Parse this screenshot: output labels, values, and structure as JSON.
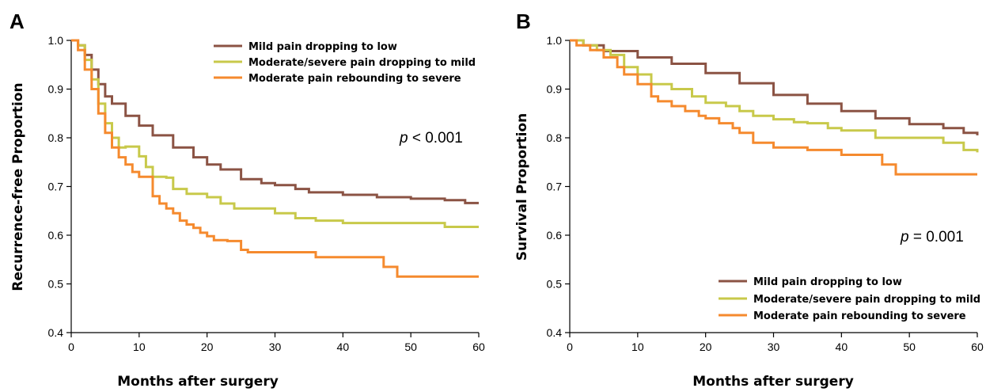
{
  "chart_data": [
    {
      "type": "line",
      "panel_label": "A",
      "xlabel": "Months after surgery",
      "ylabel": "Recurrence-free Proportion",
      "xlim": [
        0,
        60
      ],
      "ylim": [
        0.4,
        1.0
      ],
      "x_ticks": [
        0,
        10,
        20,
        30,
        40,
        50,
        60
      ],
      "y_ticks": [
        0.4,
        0.5,
        0.6,
        0.7,
        0.8,
        0.9,
        1.0
      ],
      "y_tick_labels": [
        "0.4",
        "0.5",
        "0.6",
        "0.7",
        "0.8",
        "0.9",
        "1.0"
      ],
      "legend_position": "top-right",
      "annotation": {
        "italic": "p",
        "rest": " < 0.001"
      },
      "series": [
        {
          "name": "Mild pain dropping to low",
          "color": "#8B5344",
          "x": [
            0,
            1,
            2,
            3,
            4,
            5,
            6,
            8,
            10,
            12,
            15,
            18,
            20,
            22,
            25,
            28,
            30,
            33,
            35,
            40,
            45,
            50,
            55,
            58,
            60
          ],
          "y": [
            1.0,
            0.99,
            0.97,
            0.94,
            0.91,
            0.885,
            0.87,
            0.845,
            0.825,
            0.805,
            0.78,
            0.76,
            0.745,
            0.735,
            0.715,
            0.707,
            0.703,
            0.695,
            0.688,
            0.683,
            0.678,
            0.675,
            0.672,
            0.666,
            0.666
          ]
        },
        {
          "name": "Moderate/severe pain dropping to mild",
          "color": "#C8C94A",
          "x": [
            0,
            1,
            2,
            3,
            4,
            5,
            6,
            7,
            8,
            10,
            11,
            12,
            14,
            15,
            17,
            20,
            22,
            24,
            28,
            30,
            33,
            36,
            40,
            45,
            50,
            55,
            60
          ],
          "y": [
            1.0,
            0.99,
            0.96,
            0.92,
            0.87,
            0.83,
            0.8,
            0.78,
            0.782,
            0.762,
            0.74,
            0.72,
            0.718,
            0.695,
            0.685,
            0.678,
            0.665,
            0.655,
            0.655,
            0.645,
            0.635,
            0.63,
            0.625,
            0.625,
            0.625,
            0.617,
            0.617
          ]
        },
        {
          "name": "Moderate pain rebounding to severe",
          "color": "#F58A2E",
          "x": [
            0,
            1,
            2,
            3,
            4,
            5,
            6,
            7,
            8,
            9,
            10,
            12,
            13,
            14,
            15,
            16,
            17,
            18,
            19,
            20,
            21,
            23,
            25,
            26,
            28,
            33,
            36,
            40,
            45,
            46,
            48,
            50,
            60
          ],
          "y": [
            1.0,
            0.98,
            0.94,
            0.9,
            0.85,
            0.81,
            0.78,
            0.76,
            0.745,
            0.73,
            0.72,
            0.68,
            0.665,
            0.655,
            0.645,
            0.63,
            0.622,
            0.615,
            0.605,
            0.598,
            0.59,
            0.588,
            0.57,
            0.565,
            0.565,
            0.565,
            0.555,
            0.555,
            0.555,
            0.535,
            0.515,
            0.515,
            0.515
          ]
        }
      ]
    },
    {
      "type": "line",
      "panel_label": "B",
      "xlabel": "Months after surgery",
      "ylabel": "Survival Proportion",
      "xlim": [
        0,
        60
      ],
      "ylim": [
        0.4,
        1.0
      ],
      "x_ticks": [
        0,
        10,
        20,
        30,
        40,
        50,
        60
      ],
      "y_ticks": [
        0.4,
        0.5,
        0.6,
        0.7,
        0.8,
        0.9,
        1.0
      ],
      "y_tick_labels": [
        "0.4",
        "0.5",
        "0.6",
        "0.7",
        "0.8",
        "0.9",
        "1.0"
      ],
      "legend_position": "bottom-right",
      "annotation": {
        "italic": "p",
        "rest": " = 0.001"
      },
      "series": [
        {
          "name": "Mild pain dropping to low",
          "color": "#8B5344",
          "x": [
            0,
            2,
            5,
            10,
            15,
            20,
            25,
            30,
            35,
            40,
            45,
            50,
            55,
            58,
            60
          ],
          "y": [
            1.0,
            0.99,
            0.978,
            0.965,
            0.952,
            0.933,
            0.912,
            0.888,
            0.87,
            0.855,
            0.84,
            0.828,
            0.82,
            0.81,
            0.805
          ]
        },
        {
          "name": "Moderate/severe pain dropping to mild",
          "color": "#C8C94A",
          "x": [
            0,
            2,
            4,
            6,
            8,
            10,
            12,
            15,
            18,
            20,
            23,
            25,
            27,
            30,
            33,
            35,
            38,
            40,
            43,
            45,
            50,
            55,
            58,
            60
          ],
          "y": [
            1.0,
            0.99,
            0.98,
            0.97,
            0.945,
            0.93,
            0.91,
            0.9,
            0.885,
            0.872,
            0.865,
            0.855,
            0.845,
            0.838,
            0.832,
            0.83,
            0.82,
            0.815,
            0.815,
            0.8,
            0.8,
            0.79,
            0.775,
            0.77
          ]
        },
        {
          "name": "Moderate pain rebounding to severe",
          "color": "#F58A2E",
          "x": [
            0,
            1,
            3,
            5,
            7,
            8,
            10,
            12,
            13,
            15,
            17,
            19,
            20,
            22,
            24,
            25,
            27,
            30,
            35,
            40,
            45,
            46,
            48,
            50,
            60
          ],
          "y": [
            1.0,
            0.99,
            0.98,
            0.965,
            0.945,
            0.93,
            0.91,
            0.885,
            0.875,
            0.865,
            0.855,
            0.845,
            0.84,
            0.83,
            0.82,
            0.81,
            0.79,
            0.78,
            0.775,
            0.765,
            0.765,
            0.745,
            0.725,
            0.725,
            0.725
          ]
        }
      ]
    }
  ]
}
